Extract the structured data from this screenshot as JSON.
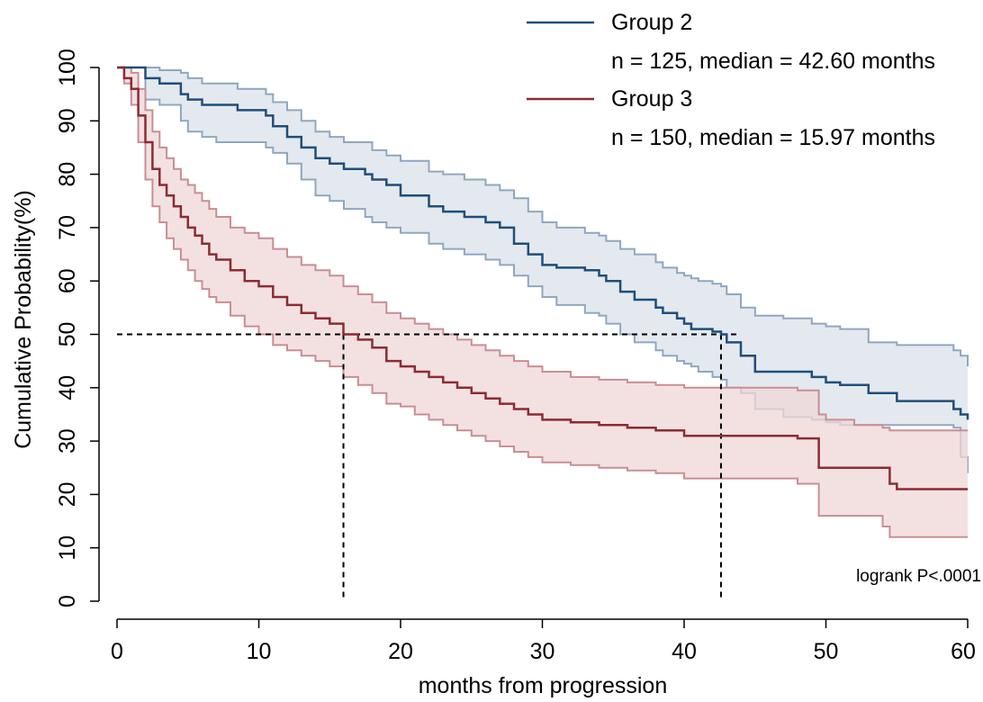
{
  "chart_data": {
    "type": "line",
    "title": "",
    "xlabel": "months from progression",
    "ylabel": "Cumulative Probability(%)",
    "xlim": [
      0,
      60
    ],
    "ylim": [
      0,
      100
    ],
    "x_ticks": [
      "0",
      "10",
      "20",
      "30",
      "40",
      "50",
      "60"
    ],
    "y_ticks": [
      "0",
      "10",
      "20",
      "30",
      "40",
      "50",
      "60",
      "70",
      "80",
      "90",
      "100"
    ],
    "grid": false,
    "legend_position": "top-right",
    "annotation": "logrank P<.0001",
    "reference_lines": {
      "y": 50,
      "x_medians": [
        15.97,
        42.6
      ]
    },
    "series": [
      {
        "name": "Group 2",
        "legend_detail": "n = 125, median = 42.60 months",
        "color": "#1f4e7a",
        "band_fill": "#dbe2ea",
        "band_stroke": "#8fa7bf",
        "x": [
          0,
          2,
          3,
          4.5,
          5,
          6,
          7,
          8.5,
          10.5,
          11,
          12,
          13,
          14,
          15,
          16,
          17.5,
          18,
          19,
          20,
          22,
          23,
          24.5,
          26,
          27,
          28,
          29,
          30,
          31,
          33,
          34,
          34.5,
          35.5,
          36.5,
          38,
          38.5,
          39.5,
          40,
          40.5,
          41,
          42,
          42.6,
          43,
          44,
          45,
          47,
          49,
          50,
          51,
          53,
          55,
          59,
          59.5,
          60
        ],
        "values": [
          100,
          98,
          97,
          95,
          94,
          93,
          93,
          92,
          91,
          89,
          87,
          85,
          83,
          82,
          81,
          80,
          79,
          78,
          76,
          74,
          73,
          72,
          71,
          70,
          67,
          65,
          63,
          62.5,
          62,
          61,
          60,
          58,
          56.5,
          55,
          54,
          53,
          52,
          51,
          51,
          50.5,
          50,
          48.5,
          46,
          43,
          43,
          42,
          41,
          40.5,
          39,
          37.5,
          36,
          35,
          34
        ],
        "lower": [
          100,
          94,
          93,
          90,
          88,
          87,
          86,
          86,
          85,
          84,
          82,
          79,
          76,
          75,
          73.5,
          72,
          71,
          70,
          69,
          67,
          66,
          65,
          64,
          63,
          61,
          59,
          57,
          55.5,
          54,
          53.5,
          52,
          50,
          48.5,
          47,
          46,
          45,
          44.5,
          44,
          43,
          42,
          41.5,
          40,
          39,
          36,
          34.5,
          34,
          33.5,
          33,
          33,
          33,
          32.5,
          27,
          24
        ],
        "upper": [
          100,
          100,
          99.5,
          99,
          98,
          97,
          97,
          96,
          95,
          93.5,
          92,
          90,
          88,
          87,
          86,
          86,
          84.5,
          83.5,
          82.5,
          80.5,
          80,
          79,
          78,
          77,
          75.5,
          73,
          71,
          70,
          69,
          68.5,
          67.5,
          66,
          65,
          63.5,
          62.5,
          61.5,
          61,
          60.5,
          60,
          59.5,
          59,
          57.5,
          55,
          53.5,
          53,
          52,
          51.5,
          51,
          48.5,
          48,
          47,
          46,
          44
        ]
      },
      {
        "name": "Group 3",
        "legend_detail": "n = 150, median = 15.97 months",
        "color": "#8c2b33",
        "band_fill": "#efd7d8",
        "band_stroke": "#c98e93",
        "x": [
          0,
          0.5,
          1,
          1.5,
          2,
          2.5,
          3,
          3.5,
          4,
          4.5,
          5,
          5.5,
          6,
          6.5,
          7,
          8,
          9,
          10,
          11,
          12,
          13,
          14,
          15,
          15.97,
          17,
          18,
          19,
          20,
          21,
          22,
          23,
          24,
          25,
          26,
          27,
          28,
          29,
          30,
          32,
          34,
          36,
          38,
          40,
          42,
          45,
          48,
          49.5,
          50,
          52,
          54,
          54.5,
          55,
          58,
          60
        ],
        "values": [
          100,
          98,
          96,
          91,
          86,
          81,
          78,
          76,
          74,
          72,
          70,
          68.5,
          67,
          65,
          64,
          62,
          60,
          59,
          57,
          55.5,
          54,
          53,
          52,
          50,
          49,
          47.5,
          45,
          44,
          43,
          42,
          41,
          40,
          39,
          38,
          37,
          36,
          35,
          34,
          33.5,
          33,
          32.5,
          32,
          31,
          31,
          31,
          30.5,
          25,
          25,
          25,
          25,
          22,
          21,
          21,
          21
        ],
        "lower": [
          100,
          97,
          93,
          86,
          79,
          74,
          71,
          68,
          66,
          64,
          62,
          60,
          58.5,
          57,
          56,
          53.5,
          51.5,
          50,
          48,
          47,
          46,
          45,
          44,
          42,
          40.5,
          39,
          37,
          36.5,
          35,
          34,
          33,
          32,
          31,
          30,
          29,
          28,
          27,
          26,
          25.5,
          25,
          24.5,
          24,
          23,
          23,
          23,
          22,
          16,
          16,
          16,
          14,
          12,
          12,
          12,
          12
        ],
        "upper": [
          100,
          100,
          99,
          96,
          92,
          88,
          85,
          83,
          81,
          79,
          78,
          76.5,
          75,
          73.5,
          72,
          70,
          69,
          68,
          66,
          64.5,
          63,
          62,
          61,
          59,
          57.5,
          56,
          54,
          53,
          52,
          51,
          50,
          49,
          48,
          47,
          46,
          45,
          44,
          43,
          42,
          41.5,
          41,
          40.5,
          40,
          40,
          40,
          39.5,
          35,
          34,
          33,
          32.5,
          32,
          32,
          32,
          32
        ]
      }
    ]
  }
}
